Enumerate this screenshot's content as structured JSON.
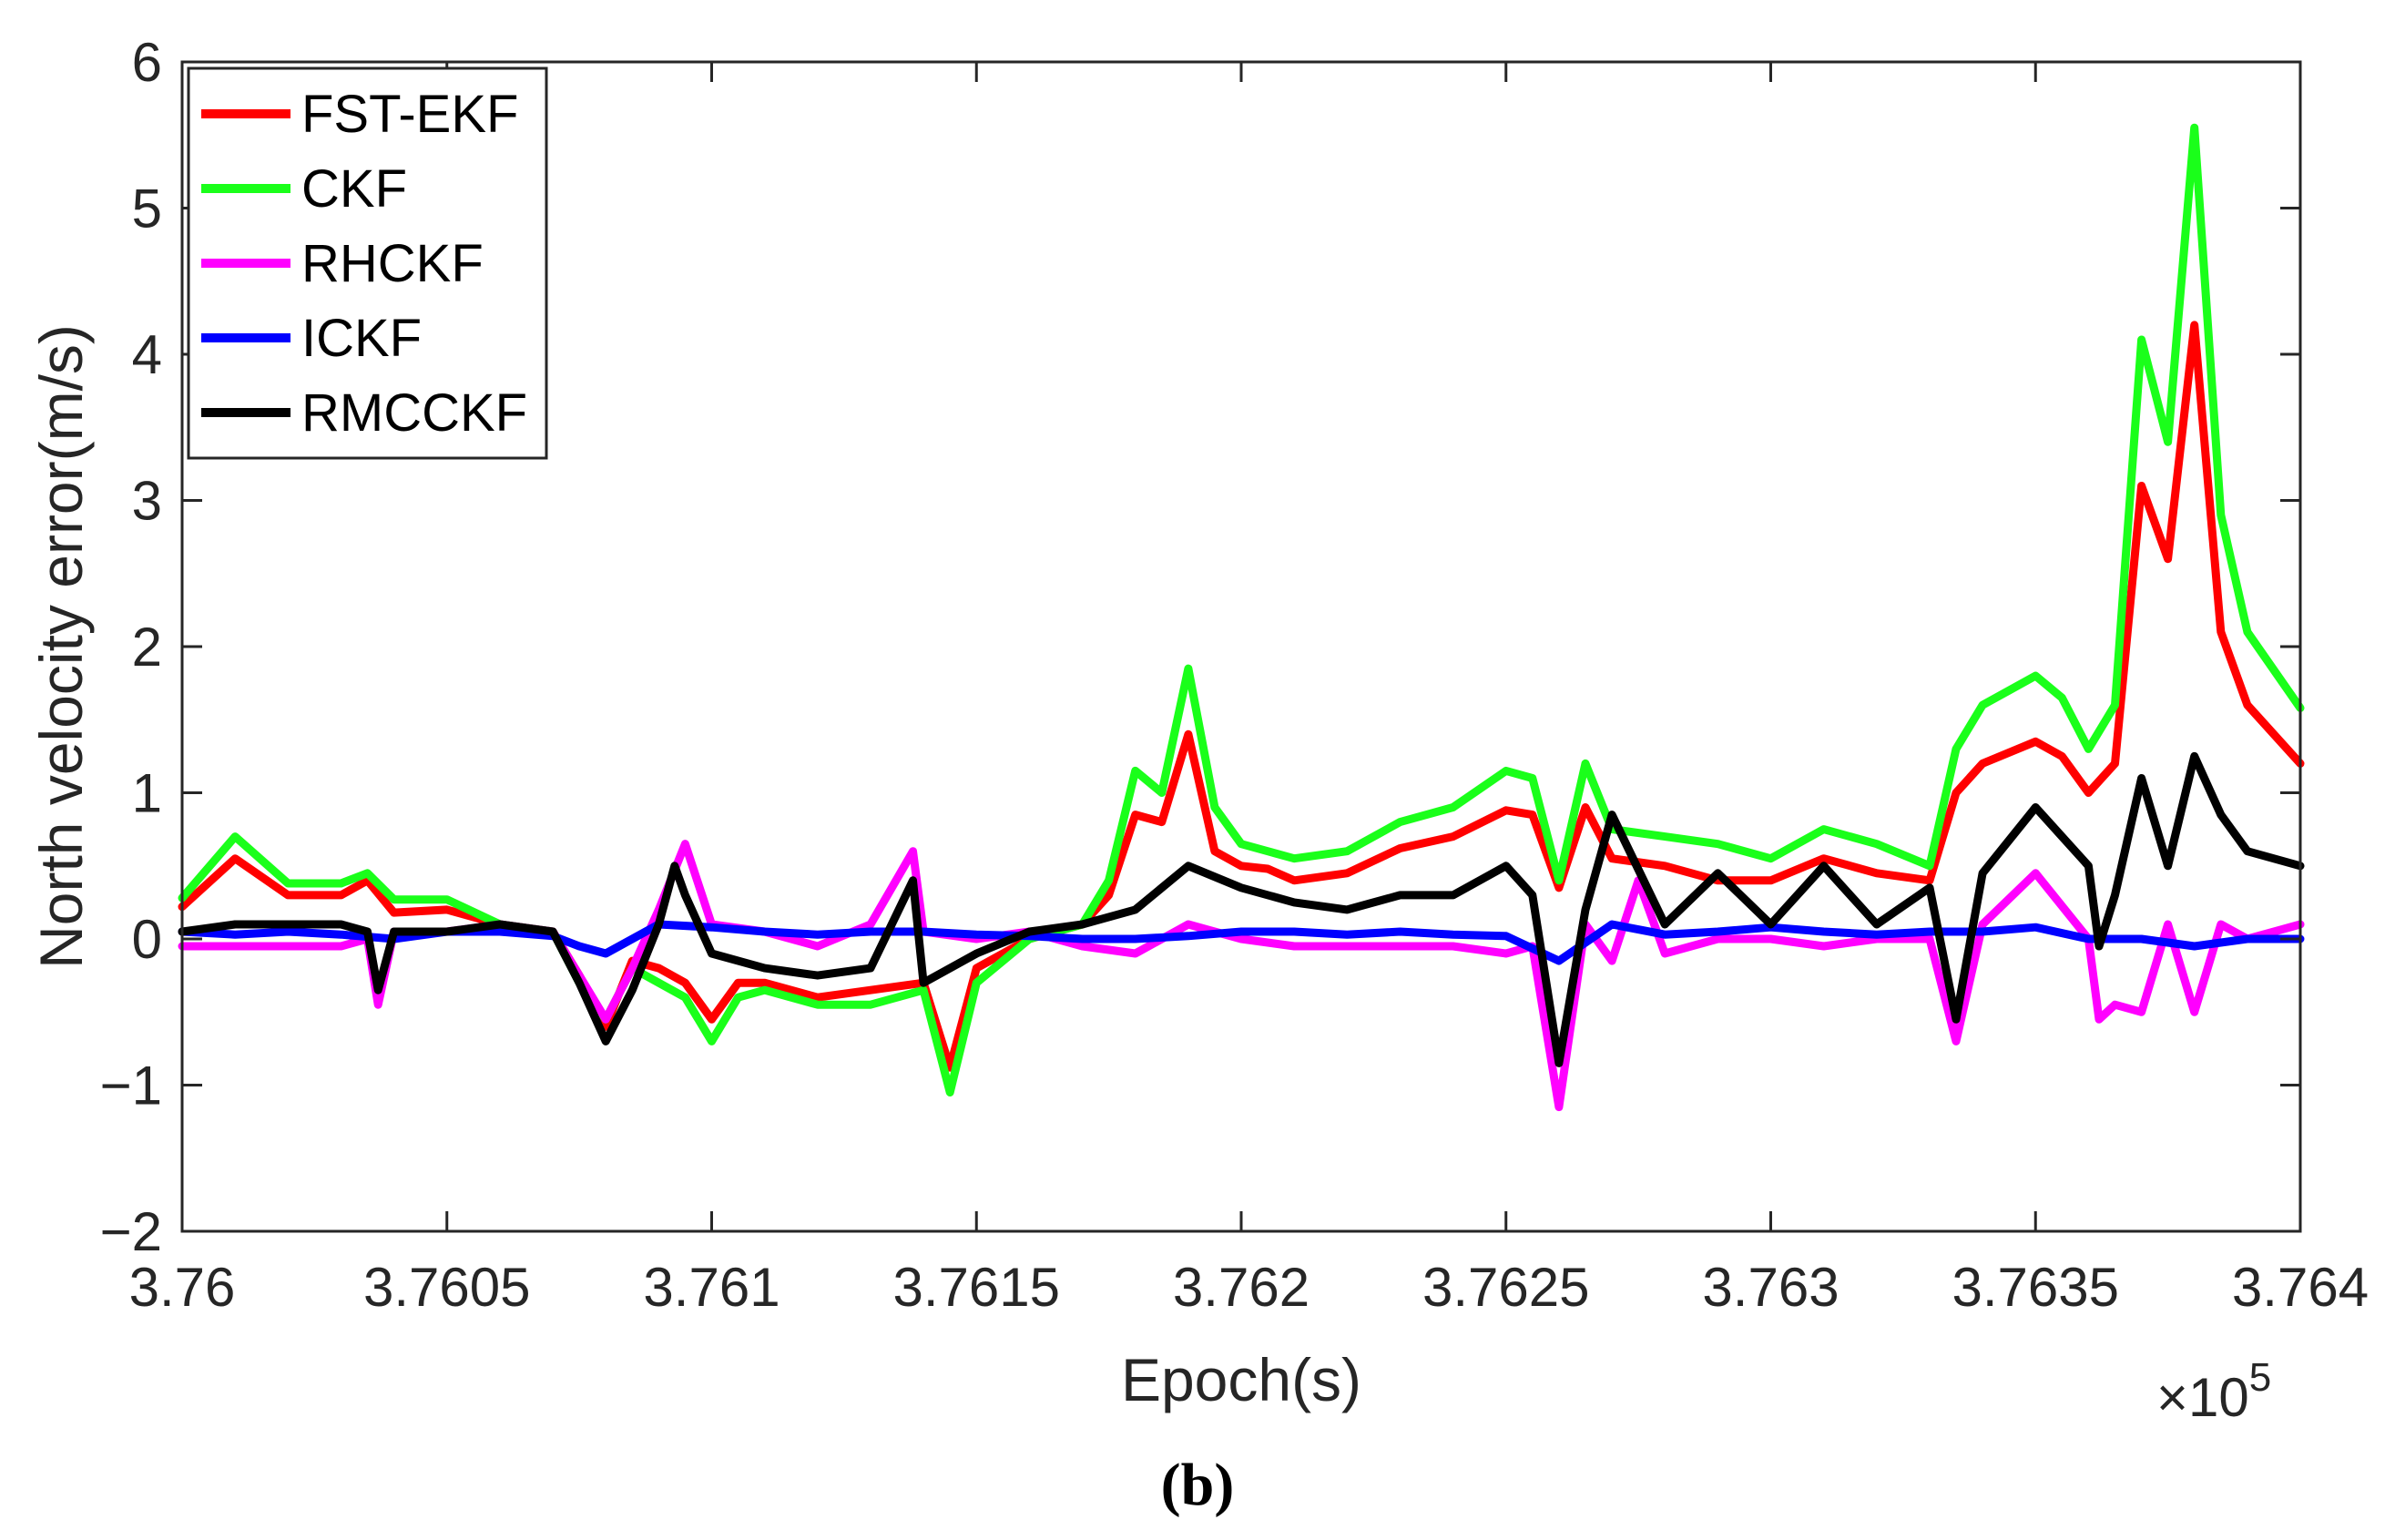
{
  "caption": "(b)",
  "chart_data": {
    "type": "line",
    "title": "",
    "xlabel": "Epoch(s)",
    "ylabel": "North velocity error(m/s)",
    "x_exponent_label": "×10",
    "x_exponent_power": "5",
    "xlim": [
      3.76,
      3.764
    ],
    "ylim": [
      -2,
      6
    ],
    "x_ticks": [
      3.76,
      3.7605,
      3.761,
      3.7615,
      3.762,
      3.7625,
      3.763,
      3.7635,
      3.764
    ],
    "x_tick_labels": [
      "3.76",
      "3.7605",
      "3.761",
      "3.7615",
      "3.762",
      "3.7625",
      "3.763",
      "3.7635",
      "3.764"
    ],
    "y_ticks": [
      -2,
      -1,
      0,
      1,
      2,
      3,
      4,
      5,
      6
    ],
    "y_tick_labels": [
      "−2",
      "−1",
      "0",
      "1",
      "2",
      "3",
      "4",
      "5",
      "6"
    ],
    "grid": false,
    "legend_position": "top-left",
    "series": [
      {
        "name": "FST-EKF",
        "color": "#ff0000",
        "x": [
          3.76,
          3.7601,
          3.7602,
          3.7603,
          3.76035,
          3.7604,
          3.7605,
          3.7606,
          3.7607,
          3.76075,
          3.7608,
          3.76085,
          3.7609,
          3.76095,
          3.761,
          3.76105,
          3.7611,
          3.7612,
          3.7613,
          3.7614,
          3.76145,
          3.7615,
          3.7616,
          3.7617,
          3.76175,
          3.7618,
          3.76185,
          3.7619,
          3.76195,
          3.762,
          3.76205,
          3.7621,
          3.7622,
          3.7623,
          3.7624,
          3.7625,
          3.76255,
          3.7626,
          3.76265,
          3.7627,
          3.7628,
          3.7629,
          3.763,
          3.7631,
          3.7632,
          3.7633,
          3.76335,
          3.7634,
          3.7635,
          3.76355,
          3.7636,
          3.76365,
          3.7637,
          3.76375,
          3.7638,
          3.76385,
          3.7639,
          3.764
        ],
        "y": [
          0.22,
          0.55,
          0.3,
          0.3,
          0.4,
          0.18,
          0.2,
          0.1,
          0.05,
          -0.25,
          -0.6,
          -0.15,
          -0.2,
          -0.3,
          -0.55,
          -0.3,
          -0.3,
          -0.4,
          -0.35,
          -0.3,
          -0.88,
          -0.2,
          0,
          0.1,
          0.3,
          0.85,
          0.8,
          1.4,
          0.6,
          0.5,
          0.48,
          0.4,
          0.45,
          0.62,
          0.7,
          0.88,
          0.85,
          0.35,
          0.9,
          0.55,
          0.5,
          0.4,
          0.4,
          0.55,
          0.45,
          0.4,
          1.0,
          1.2,
          1.35,
          1.25,
          1.0,
          1.2,
          3.1,
          2.6,
          4.2,
          2.1,
          1.6,
          1.2
        ]
      },
      {
        "name": "CKF",
        "color": "#1aff1a",
        "x": [
          3.76,
          3.7601,
          3.7602,
          3.7603,
          3.76035,
          3.7604,
          3.7605,
          3.7606,
          3.7607,
          3.76075,
          3.7608,
          3.76085,
          3.7609,
          3.76095,
          3.761,
          3.76105,
          3.7611,
          3.7612,
          3.7613,
          3.7614,
          3.76145,
          3.7615,
          3.7616,
          3.7617,
          3.76175,
          3.7618,
          3.76185,
          3.7619,
          3.76195,
          3.762,
          3.76205,
          3.7621,
          3.7622,
          3.7623,
          3.7624,
          3.7625,
          3.76255,
          3.7626,
          3.76265,
          3.7627,
          3.7628,
          3.7629,
          3.763,
          3.7631,
          3.7632,
          3.7633,
          3.76335,
          3.7634,
          3.7635,
          3.76355,
          3.7636,
          3.76365,
          3.7637,
          3.76375,
          3.7638,
          3.76385,
          3.7639,
          3.764
        ],
        "y": [
          0.28,
          0.7,
          0.38,
          0.38,
          0.45,
          0.27,
          0.27,
          0.1,
          0.05,
          -0.3,
          -0.55,
          -0.2,
          -0.3,
          -0.4,
          -0.7,
          -0.4,
          -0.35,
          -0.45,
          -0.45,
          -0.35,
          -1.05,
          -0.3,
          0,
          0.1,
          0.4,
          1.15,
          1.0,
          1.85,
          0.9,
          0.65,
          0.6,
          0.55,
          0.6,
          0.8,
          0.9,
          1.15,
          1.1,
          0.4,
          1.2,
          0.75,
          0.7,
          0.65,
          0.55,
          0.75,
          0.65,
          0.5,
          1.3,
          1.6,
          1.8,
          1.65,
          1.3,
          1.6,
          4.1,
          3.4,
          5.55,
          2.9,
          2.1,
          1.58
        ]
      },
      {
        "name": "RHCKF",
        "color": "#ff00ff",
        "x": [
          3.76,
          3.7601,
          3.7602,
          3.7603,
          3.76035,
          3.76037,
          3.7604,
          3.7605,
          3.7606,
          3.7607,
          3.7608,
          3.76085,
          3.7609,
          3.76095,
          3.761,
          3.7611,
          3.7612,
          3.7613,
          3.76138,
          3.7614,
          3.7615,
          3.7616,
          3.7617,
          3.7618,
          3.7619,
          3.762,
          3.7621,
          3.7622,
          3.7623,
          3.7624,
          3.7625,
          3.76255,
          3.7626,
          3.76265,
          3.7627,
          3.76275,
          3.7628,
          3.7629,
          3.763,
          3.7631,
          3.7632,
          3.7633,
          3.76335,
          3.7634,
          3.7635,
          3.7636,
          3.76362,
          3.76365,
          3.7637,
          3.76375,
          3.7638,
          3.76385,
          3.7639,
          3.764
        ],
        "y": [
          -0.05,
          -0.05,
          -0.05,
          -0.05,
          0,
          -0.45,
          0.05,
          0.05,
          0.1,
          0.05,
          -0.55,
          -0.2,
          0.2,
          0.65,
          0.1,
          0.05,
          -0.05,
          0.1,
          0.6,
          0.05,
          0.0,
          0.05,
          -0.05,
          -0.1,
          0.1,
          0.0,
          -0.05,
          -0.05,
          -0.05,
          -0.05,
          -0.1,
          -0.05,
          -1.15,
          0.1,
          -0.15,
          0.4,
          -0.1,
          0.0,
          0.0,
          -0.05,
          0.0,
          0.0,
          -0.7,
          0.1,
          0.45,
          0.0,
          -0.55,
          -0.45,
          -0.5,
          0.1,
          -0.5,
          0.1,
          0.0,
          0.1
        ]
      },
      {
        "name": "ICKF",
        "color": "#0000ff",
        "x": [
          3.76,
          3.7601,
          3.7602,
          3.7603,
          3.7604,
          3.7605,
          3.7606,
          3.7607,
          3.76075,
          3.7608,
          3.7609,
          3.761,
          3.7611,
          3.7612,
          3.7613,
          3.7614,
          3.7615,
          3.7616,
          3.7617,
          3.7618,
          3.7619,
          3.762,
          3.7621,
          3.7622,
          3.7623,
          3.7624,
          3.7625,
          3.7626,
          3.7627,
          3.7628,
          3.7629,
          3.763,
          3.7631,
          3.7632,
          3.7633,
          3.7634,
          3.7635,
          3.7636,
          3.7637,
          3.7638,
          3.7639,
          3.764
        ],
        "y": [
          0.05,
          0.03,
          0.05,
          0.03,
          0.0,
          0.05,
          0.05,
          0.02,
          -0.05,
          -0.1,
          0.1,
          0.08,
          0.05,
          0.03,
          0.05,
          0.05,
          0.03,
          0.02,
          0.0,
          0.0,
          0.02,
          0.05,
          0.05,
          0.03,
          0.05,
          0.03,
          0.02,
          -0.15,
          0.1,
          0.03,
          0.05,
          0.08,
          0.05,
          0.03,
          0.05,
          0.05,
          0.08,
          0.0,
          0.0,
          -0.05,
          0.0,
          0.0
        ]
      },
      {
        "name": "RMCCKF",
        "color": "#000000",
        "x": [
          3.76,
          3.7601,
          3.7602,
          3.7603,
          3.76035,
          3.76037,
          3.7604,
          3.7605,
          3.7606,
          3.7607,
          3.76075,
          3.7608,
          3.76085,
          3.7609,
          3.76093,
          3.76095,
          3.761,
          3.7611,
          3.7612,
          3.7613,
          3.76138,
          3.7614,
          3.7615,
          3.7616,
          3.7617,
          3.7618,
          3.7619,
          3.762,
          3.7621,
          3.7622,
          3.7623,
          3.7624,
          3.7625,
          3.76255,
          3.7626,
          3.76265,
          3.7627,
          3.7628,
          3.7629,
          3.763,
          3.7631,
          3.7632,
          3.7633,
          3.76335,
          3.7634,
          3.7635,
          3.7636,
          3.76362,
          3.76365,
          3.7637,
          3.76375,
          3.7638,
          3.76385,
          3.7639,
          3.764
        ],
        "y": [
          0.05,
          0.1,
          0.1,
          0.1,
          0.05,
          -0.35,
          0.05,
          0.05,
          0.1,
          0.05,
          -0.3,
          -0.7,
          -0.35,
          0.1,
          0.5,
          0.3,
          -0.1,
          -0.2,
          -0.25,
          -0.2,
          0.4,
          -0.3,
          -0.1,
          0.05,
          0.1,
          0.2,
          0.5,
          0.35,
          0.25,
          0.2,
          0.3,
          0.3,
          0.5,
          0.3,
          -0.85,
          0.2,
          0.85,
          0.1,
          0.45,
          0.1,
          0.5,
          0.1,
          0.35,
          -0.55,
          0.45,
          0.9,
          0.5,
          -0.05,
          0.3,
          1.1,
          0.5,
          1.25,
          0.85,
          0.6,
          0.5
        ]
      }
    ]
  }
}
